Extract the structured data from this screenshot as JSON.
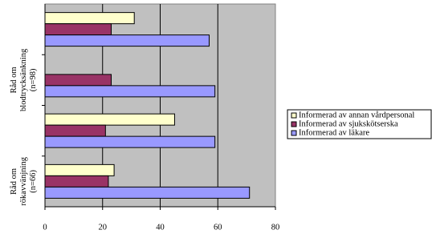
{
  "chart_data": {
    "type": "hbar",
    "categories": [
      null,
      "Råd om\nblodtrycksänkning\n(n=98)",
      null,
      "Råd om\nrökavvänjning\n(n=66)"
    ],
    "series": [
      {
        "name": "Informerad av annan vårdpersonal",
        "color": "#ffffcc",
        "values": [
          31,
          0,
          45,
          24
        ]
      },
      {
        "name": "Informerad av sjukskötserska",
        "color": "#993366",
        "values": [
          23,
          23,
          21,
          22
        ]
      },
      {
        "name": "Informerad av läkare",
        "color": "#9999ff",
        "values": [
          57,
          59,
          59,
          71
        ]
      }
    ],
    "xlim": [
      0,
      80
    ],
    "xticks": [
      0,
      20,
      40,
      60,
      80
    ],
    "grid": true,
    "legend": "right"
  }
}
